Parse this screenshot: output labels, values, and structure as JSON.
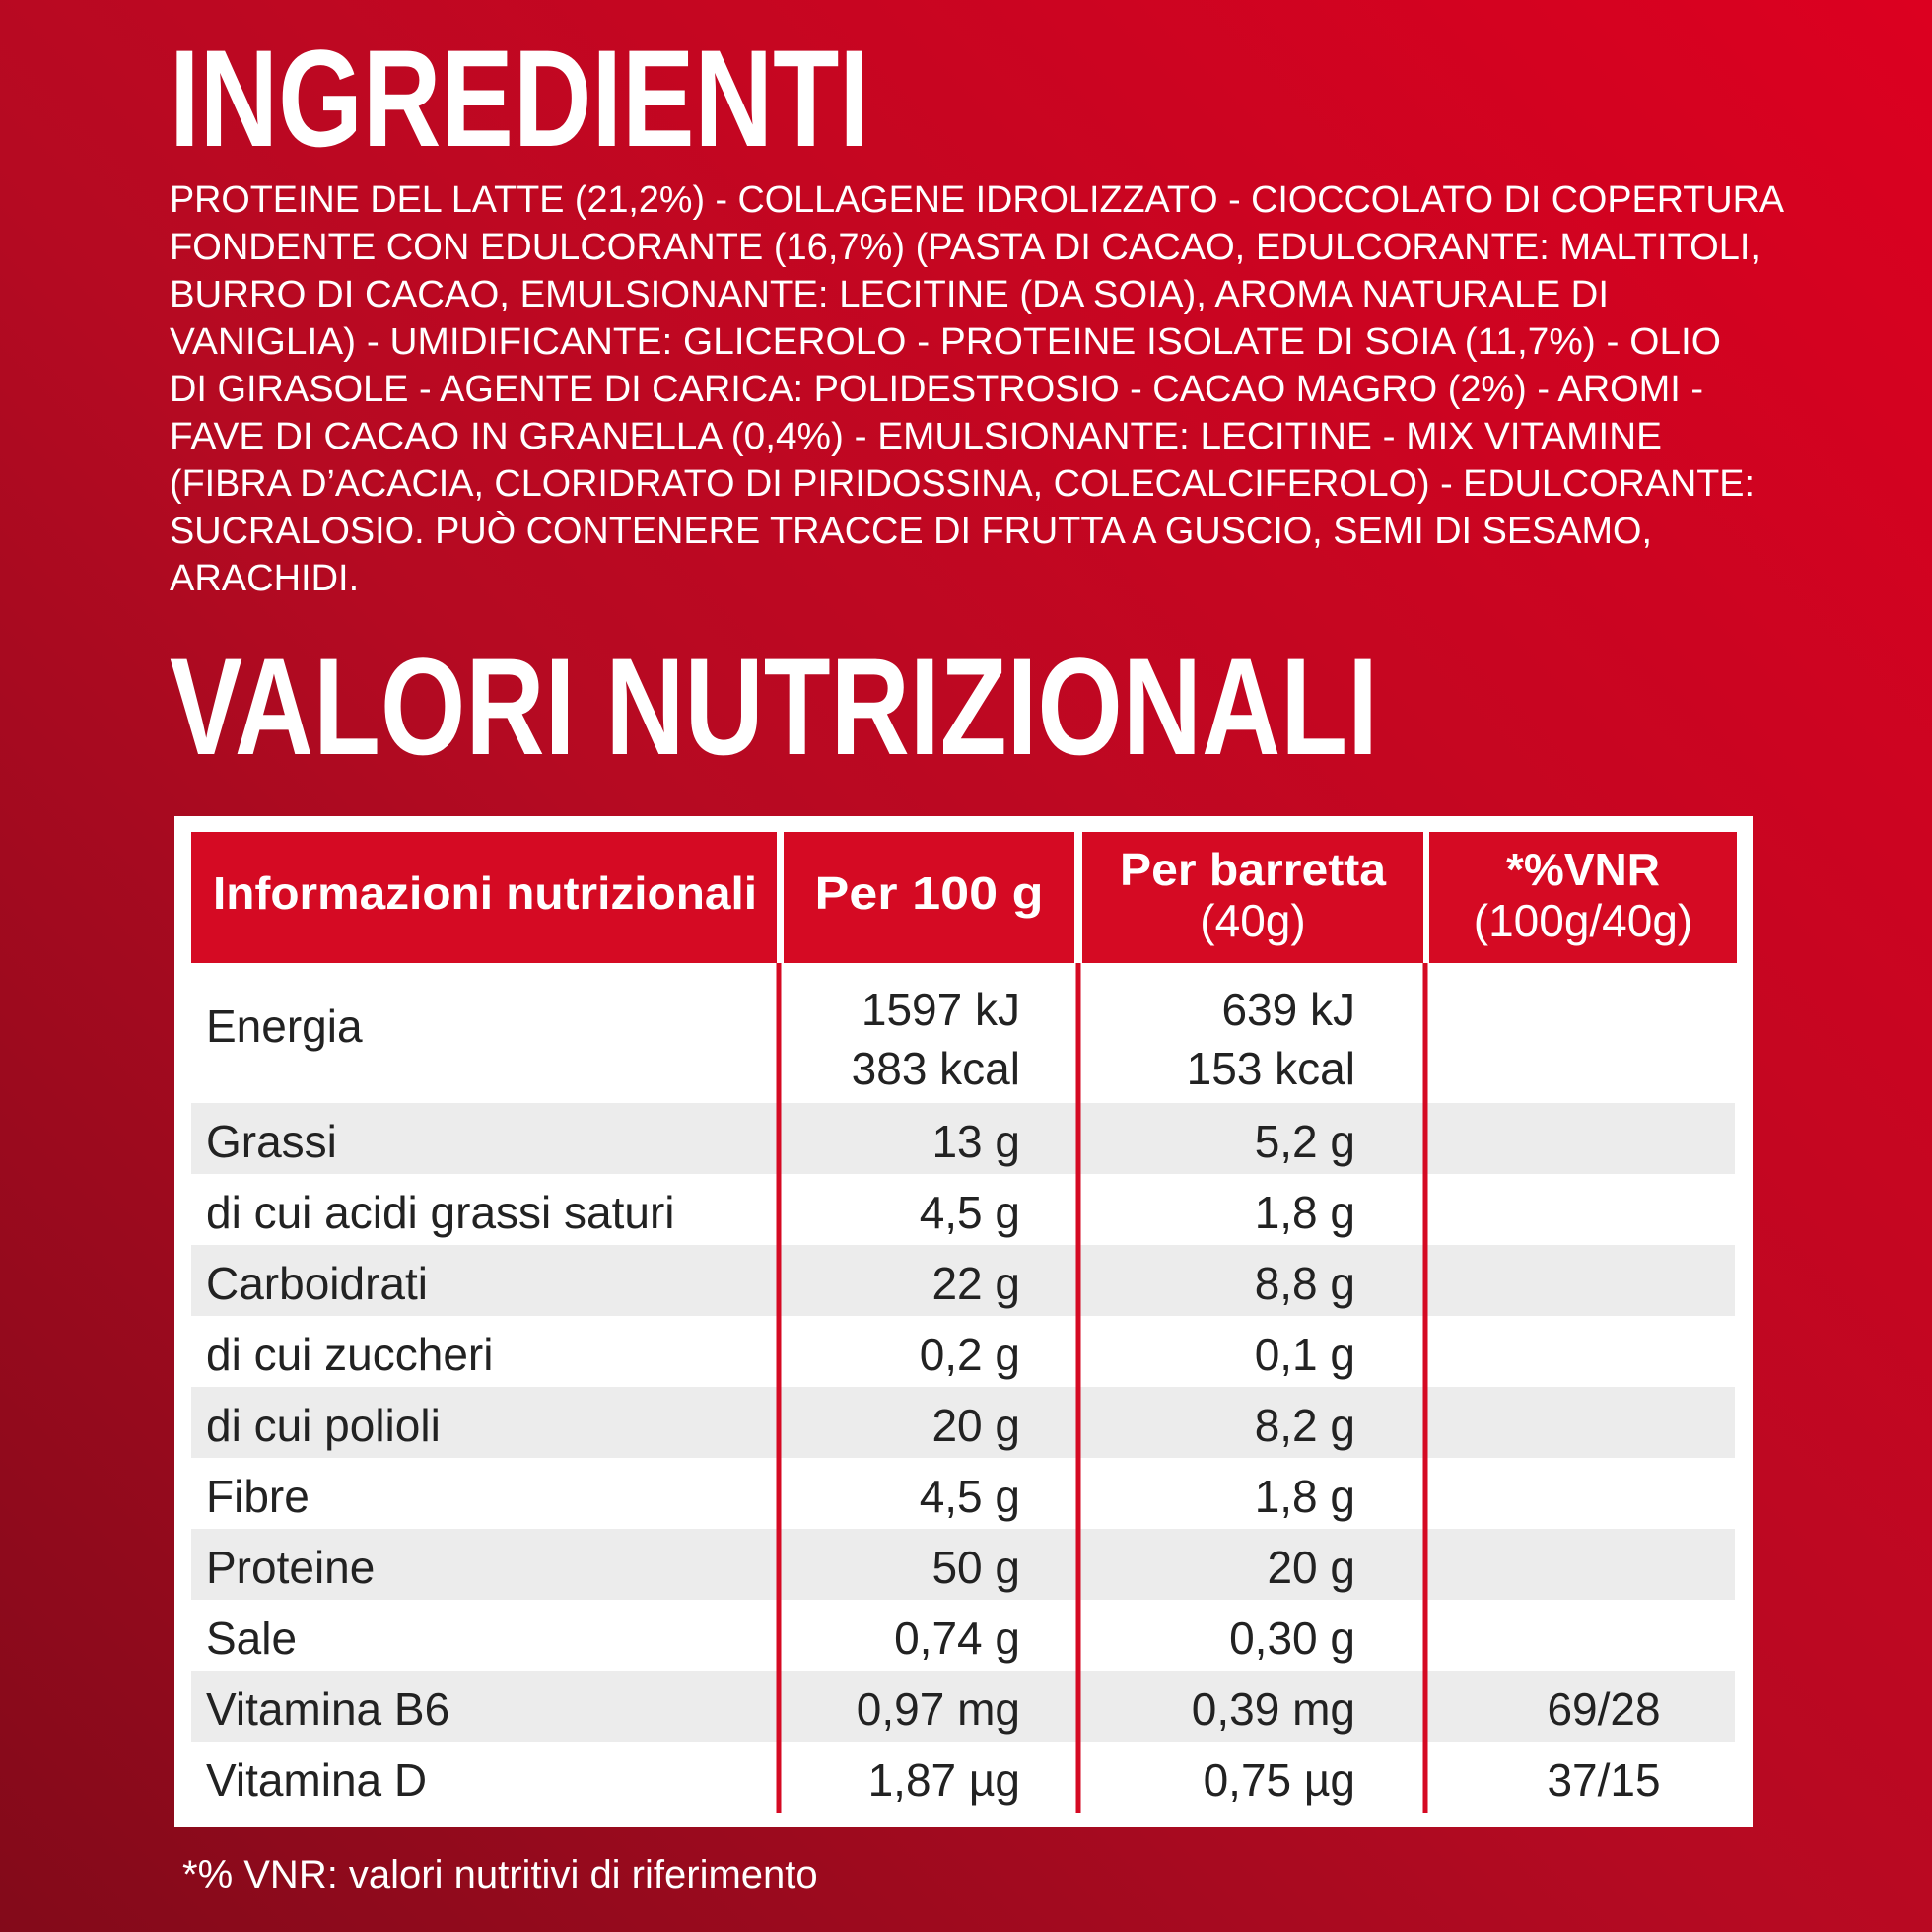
{
  "ingredients": {
    "title": "INGREDIENTI",
    "lines": [
      "PROTEINE DEL LATTE (21,2%) - COLLAGENE IDROLIZZATO - CIOCCOLATO DI COPERTURA",
      "FONDENTE CON EDULCORANTE (16,7%) (PASTA DI CACAO, EDULCORANTE: MALTITOLI,",
      "BURRO DI CACAO, EMULSIONANTE: LECITINE (DA SOIA), AROMA NATURALE DI",
      "VANIGLIA) - UMIDIFICANTE: GLICEROLO - PROTEINE ISOLATE DI SOIA (11,7%) - OLIO",
      "DI GIRASOLE - AGENTE DI CARICA: POLIDESTROSIO - CACAO MAGRO (2%) - AROMI -",
      "FAVE DI CACAO IN GRANELLA (0,4%) - EMULSIONANTE: LECITINE - MIX VITAMINE",
      "(FIBRA D’ACACIA, CLORIDRATO DI PIRIDOSSINA, COLECALCIFEROLO) - EDULCORANTE:",
      "SUCRALOSIO. PUÒ CONTENERE TRACCE DI FRUTTA A GUSCIO, SEMI DI SESAMO,",
      "ARACHIDI."
    ]
  },
  "nutrition": {
    "title": "VALORI NUTRIZIONALI",
    "header": [
      [
        "Informazioni nutrizionali"
      ],
      [
        "Per 100 g"
      ],
      [
        "Per barretta",
        "(40g)"
      ],
      [
        "*%VNR",
        "(100g/40g)"
      ]
    ],
    "rows": [
      {
        "label": "Energia",
        "per100": [
          "1597 kJ",
          "383 kcal"
        ],
        "perBar": [
          "639 kJ",
          "153 kcal"
        ]
      },
      {
        "label": "Grassi",
        "per100": [
          "13 g"
        ],
        "perBar": [
          "5,2 g"
        ]
      },
      {
        "label": "di cui acidi grassi saturi",
        "per100": [
          "4,5 g"
        ],
        "perBar": [
          "1,8 g"
        ]
      },
      {
        "label": "Carboidrati",
        "per100": [
          "22 g"
        ],
        "perBar": [
          "8,8 g"
        ]
      },
      {
        "label": "di cui zuccheri",
        "per100": [
          "0,2 g"
        ],
        "perBar": [
          "0,1 g"
        ]
      },
      {
        "label": "di cui polioli",
        "per100": [
          "20 g"
        ],
        "perBar": [
          "8,2 g"
        ]
      },
      {
        "label": "Fibre",
        "per100": [
          "4,5 g"
        ],
        "perBar": [
          "1,8 g"
        ]
      },
      {
        "label": "Proteine",
        "per100": [
          "50 g"
        ],
        "perBar": [
          "20 g"
        ]
      },
      {
        "label": "Sale",
        "per100": [
          "0,74 g"
        ],
        "perBar": [
          "0,30 g"
        ]
      },
      {
        "label": "Vitamina B6",
        "per100": [
          "0,97 mg"
        ],
        "perBar": [
          "0,39 mg"
        ],
        "vnr": "69/28"
      },
      {
        "label": "Vitamina D",
        "per100": [
          "1,87 µg"
        ],
        "perBar": [
          "0,75 µg"
        ],
        "vnr": "37/15"
      }
    ],
    "footnote": "*% VNR: valori nutritivi di riferimento"
  }
}
